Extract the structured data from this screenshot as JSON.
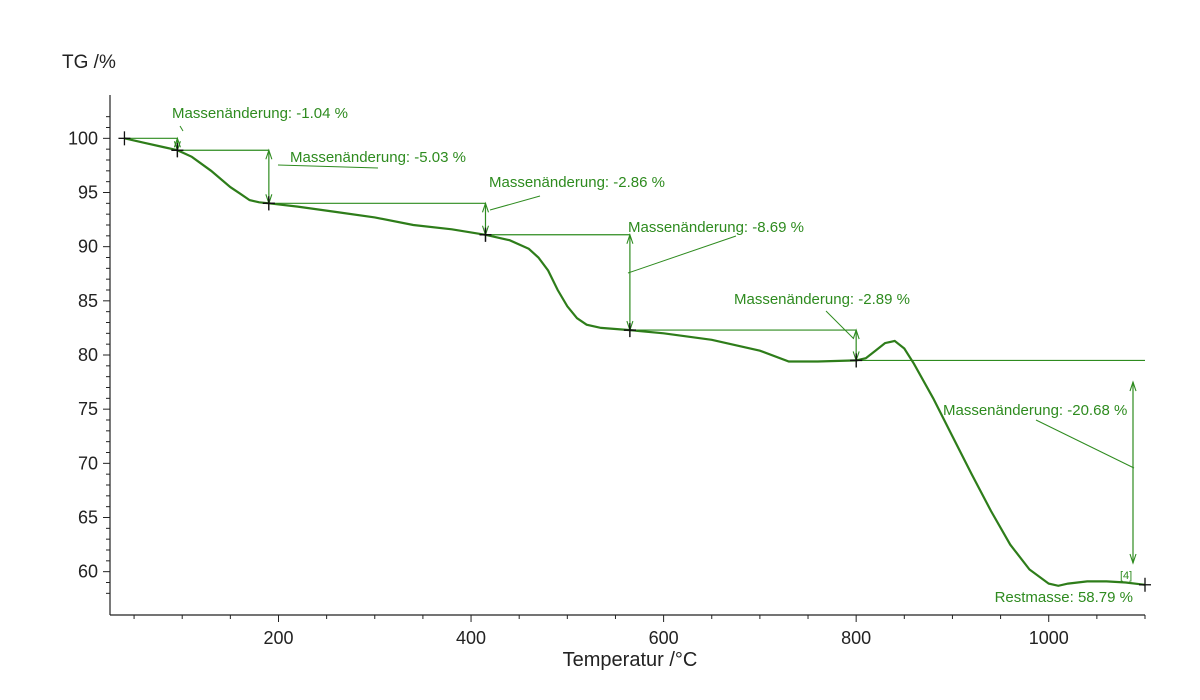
{
  "chart_data": {
    "type": "line",
    "ylabel": "TG /%",
    "xlabel": "Temperatur /°C",
    "xlim": [
      25,
      1100
    ],
    "ylim": [
      56,
      104
    ],
    "x_ticks": [
      200,
      400,
      600,
      800,
      1000
    ],
    "y_ticks": [
      60,
      65,
      70,
      75,
      80,
      85,
      90,
      95,
      100
    ],
    "grid": false,
    "line_color": "#2e7d1a",
    "annotation_color": "#2e8b1f",
    "series": [
      {
        "x": [
          40,
          60,
          80,
          95,
          110,
          130,
          150,
          160,
          170,
          180,
          190,
          220,
          260,
          300,
          340,
          380,
          415,
          440,
          460,
          470,
          480,
          490,
          500,
          510,
          520,
          535,
          550,
          565,
          600,
          650,
          700,
          730,
          760,
          800,
          810,
          820,
          830,
          840,
          850,
          860,
          880,
          900,
          920,
          940,
          960,
          980,
          1000,
          1010,
          1020,
          1030,
          1040,
          1060,
          1080,
          1100
        ],
        "y": [
          100.0,
          99.6,
          99.2,
          98.9,
          98.3,
          97.0,
          95.5,
          94.9,
          94.3,
          94.1,
          94.0,
          93.7,
          93.2,
          92.7,
          92.0,
          91.6,
          91.1,
          90.6,
          89.8,
          89.0,
          87.8,
          86.0,
          84.5,
          83.4,
          82.8,
          82.5,
          82.4,
          82.3,
          82.0,
          81.4,
          80.4,
          79.4,
          79.4,
          79.5,
          79.7,
          80.4,
          81.1,
          81.3,
          80.6,
          79.2,
          76.0,
          72.5,
          69.0,
          65.6,
          62.5,
          60.2,
          58.9,
          58.7,
          58.9,
          59.0,
          59.1,
          59.1,
          59.0,
          58.79
        ]
      }
    ],
    "steps": [
      {
        "label": "Massenänderung: -1.04 %",
        "x1": 40,
        "y1": 100.0,
        "x2": 95,
        "y2": 98.9
      },
      {
        "label": "Massenänderung: -5.03 %",
        "x1": 95,
        "y1": 98.9,
        "x2": 190,
        "y2": 94.0
      },
      {
        "label": "Massenänderung: -2.86 %",
        "x1": 190,
        "y1": 94.0,
        "x2": 415,
        "y2": 91.1
      },
      {
        "label": "Massenänderung: -8.69 %",
        "x1": 415,
        "y1": 91.1,
        "x2": 565,
        "y2": 82.3
      },
      {
        "label": "Massenänderung: -2.89 %",
        "x1": 565,
        "y1": 82.3,
        "x2": 800,
        "y2": 79.5
      },
      {
        "label": "Massenänderung: -20.68 %",
        "x1": 800,
        "y1": 79.5,
        "x2": 1100,
        "y2": 58.79
      }
    ],
    "residue_label": "Restmasse: 58.79 %",
    "marker_label": "[4]"
  }
}
